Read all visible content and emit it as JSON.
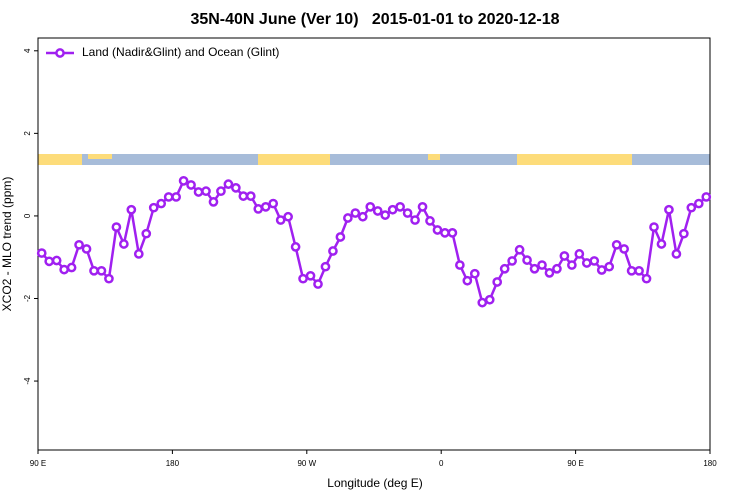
{
  "chart_data": {
    "type": "line",
    "title": "35N-40N June (Ver 10)   2015-01-01 to 2020-12-18",
    "xlabel": "Longitude (deg E)",
    "ylabel": "XCO2 - MLO trend (ppm)",
    "x": [
      92.5,
      97.5,
      102.5,
      107.5,
      112.5,
      117.5,
      122.5,
      127.5,
      132.5,
      137.5,
      142.5,
      147.5,
      152.5,
      157.5,
      162.5,
      167.5,
      172.5,
      177.5,
      182.5,
      187.5,
      192.5,
      197.5,
      202.5,
      207.5,
      212.5,
      217.5,
      222.5,
      227.5,
      232.5,
      237.5,
      242.5,
      247.5,
      252.5,
      257.5,
      262.5,
      267.5,
      272.5,
      277.5,
      282.5,
      287.5,
      292.5,
      297.5,
      302.5,
      307.5,
      312.5,
      317.5,
      322.5,
      327.5,
      332.5,
      337.5,
      342.5,
      347.5,
      352.5,
      357.5,
      362.5,
      367.5,
      372.5,
      377.5,
      382.5,
      387.5,
      392.5,
      397.5,
      402.5,
      407.5,
      412.5,
      417.5,
      422.5,
      427.5,
      432.5,
      437.5,
      442.5,
      447.5,
      452.5,
      457.5,
      462.5,
      467.5,
      472.5,
      477.5,
      482.5,
      487.5,
      492.5,
      497.5,
      502.5,
      507.5,
      512.5,
      517.5,
      522.5,
      527.5,
      532.5,
      537.5
    ],
    "series": [
      {
        "name": "Land (Nadir&Glint) and Ocean (Glint)",
        "color": "#a020f0",
        "values": [
          -0.9,
          -1.1,
          -1.08,
          -1.3,
          -1.25,
          -0.7,
          -0.8,
          -1.33,
          -1.33,
          -1.52,
          -0.27,
          -0.68,
          0.15,
          -0.92,
          -0.43,
          0.2,
          0.3,
          0.46,
          0.46,
          0.85,
          0.75,
          0.58,
          0.6,
          0.34,
          0.6,
          0.77,
          0.68,
          0.48,
          0.48,
          0.17,
          0.22,
          0.3,
          -0.1,
          -0.02,
          -0.75,
          -1.52,
          -1.45,
          -1.65,
          -1.23,
          -0.85,
          -0.51,
          -0.05,
          0.07,
          -0.02,
          0.22,
          0.12,
          0.02,
          0.15,
          0.22,
          0.07,
          -0.1,
          0.22,
          -0.12,
          -0.34,
          -0.41,
          -0.41,
          -1.19,
          -1.57,
          -1.4,
          -2.1,
          -2.03,
          -1.6,
          -1.28,
          -1.09,
          -0.82,
          -1.07,
          -1.28,
          -1.19,
          -1.38,
          -1.28,
          -0.97,
          -1.19,
          -0.92,
          -1.14,
          -1.09,
          -1.31,
          -1.23,
          -0.7,
          -0.8,
          -1.33,
          -1.33,
          -1.52,
          -0.27,
          -0.68,
          0.15,
          -0.92,
          -0.43,
          0.2,
          0.3,
          0.46
        ]
      }
    ],
    "xlim": [
      90,
      540
    ],
    "xticks": [
      {
        "value": 90,
        "label": "90 E"
      },
      {
        "value": 180,
        "label": "180"
      },
      {
        "value": 270,
        "label": "90 W"
      },
      {
        "value": 360,
        "label": "0"
      },
      {
        "value": 450,
        "label": "90 E"
      },
      {
        "value": 540,
        "label": "180"
      }
    ],
    "ylim": [
      -5.67,
      4.31
    ],
    "yticks": [
      -4,
      -2,
      0,
      2,
      4
    ],
    "grid": false,
    "legend": "top-left"
  }
}
